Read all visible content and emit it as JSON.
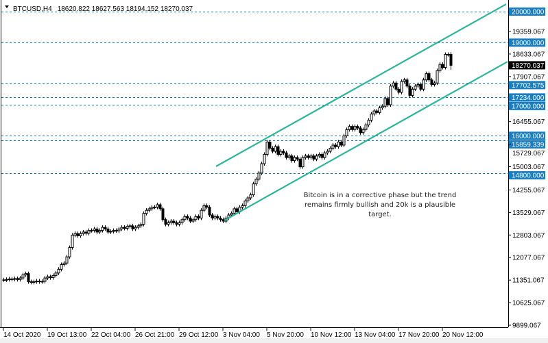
{
  "header": {
    "symbol": "BTCUSD,H4",
    "ohlc": "18620.822 18627.563 18194.152 18270.037"
  },
  "annotation": {
    "lines": [
      "Bitcoin is in a corrective phase but the trend",
      "remains firmly bullish and 20k is a plausible",
      "target."
    ]
  },
  "colors": {
    "level_tag": "#1a7dbf",
    "level_line": "#1a6fa8",
    "channel": "#2bb59a",
    "current_tag": "#000000"
  },
  "chart_data": {
    "type": "candlestick",
    "title": "",
    "ylim": [
      9899.067,
      20300
    ],
    "grid": false,
    "y_tick_labels": [
      "19359.067",
      "18633.067",
      "17907.067",
      "16455.067",
      "15729.067",
      "15003.067",
      "14255.067",
      "13529.067",
      "12803.067",
      "12077.067",
      "11351.067",
      "10625.067",
      "9899.067"
    ],
    "x_tick_labels": [
      "14 Oct 2020",
      "19 Oct 13:00",
      "22 Oct 04:00",
      "26 Oct 21:00",
      "29 Oct 12:00",
      "3 Nov 04:00",
      "5 Nov 20:00",
      "10 Nov 12:00",
      "13 Nov 04:00",
      "17 Nov 20:00",
      "20 Nov 12:00"
    ],
    "bars_per_x_label": 16,
    "closes": [
      11360,
      11370,
      11390,
      11380,
      11400,
      11370,
      11420,
      11520,
      11560,
      11300,
      11280,
      11300,
      11320,
      11300,
      11310,
      11420,
      11460,
      11430,
      11500,
      11580,
      11700,
      11850,
      11900,
      12100,
      12400,
      12800,
      12850,
      12780,
      12850,
      12900,
      12860,
      12950,
      12950,
      13000,
      12900,
      12950,
      13050,
      13000,
      12900,
      12920,
      12950,
      12940,
      13000,
      13050,
      13020,
      13080,
      13100,
      13000,
      13050,
      13100,
      13150,
      13500,
      13600,
      13650,
      13700,
      13700,
      13780,
      13650,
      13300,
      13150,
      13200,
      13250,
      13200,
      13150,
      13200,
      13300,
      13400,
      13350,
      13250,
      13300,
      13400,
      13350,
      13600,
      13750,
      13700,
      13450,
      13350,
      13400,
      13350,
      13300,
      13250,
      13350,
      13450,
      13500,
      13650,
      13550,
      13700,
      13750,
      13900,
      14000,
      14100,
      14450,
      14600,
      14800,
      15100,
      15400,
      15800,
      15600,
      15500,
      15650,
      15400,
      15500,
      15450,
      15300,
      15350,
      15200,
      15300,
      15250,
      15000,
      15300,
      15350,
      15300,
      15350,
      15250,
      15350,
      15400,
      15300,
      15450,
      15500,
      15600,
      15700,
      15650,
      15800,
      15700,
      16000,
      16200,
      16300,
      16200,
      16300,
      16250,
      16100,
      16200,
      16350,
      16500,
      16700,
      16800,
      16750,
      16900,
      16950,
      17200,
      17000,
      17600,
      17700,
      17500,
      17400,
      17750,
      17800,
      17600,
      17300,
      17500,
      17600,
      17650,
      17500,
      17800,
      18000,
      17800,
      17650,
      17700,
      18100,
      18300,
      18200,
      18620.822,
      18620.822,
      18270.037
    ],
    "last_bar": {
      "open": 18620.822,
      "high": 18627.563,
      "low": 18194.152,
      "close": 18270.037
    },
    "levels": [
      {
        "label": "20000.000",
        "value": 20000
      },
      {
        "label": "19000.000",
        "value": 19000
      },
      {
        "label": "17702.575",
        "value": 17702.575
      },
      {
        "label": "17234.000",
        "value": 17234
      },
      {
        "label": "17000.000",
        "value": 17000
      },
      {
        "label": "16000.000",
        "value": 16000
      },
      {
        "label": "15859.339",
        "value": 15859.339
      },
      {
        "label": "14800.000",
        "value": 14800
      }
    ],
    "current_price": {
      "label": "18270.037",
      "value": 18270.037
    },
    "channel": [
      {
        "from": {
          "bar": 77.5,
          "price": 15015
        },
        "to": {
          "bar": 183.25,
          "price": 20240
        }
      },
      {
        "from": {
          "bar": 80.5,
          "price": 13273
        },
        "to": {
          "bar": 183.75,
          "price": 18388
        }
      }
    ]
  }
}
